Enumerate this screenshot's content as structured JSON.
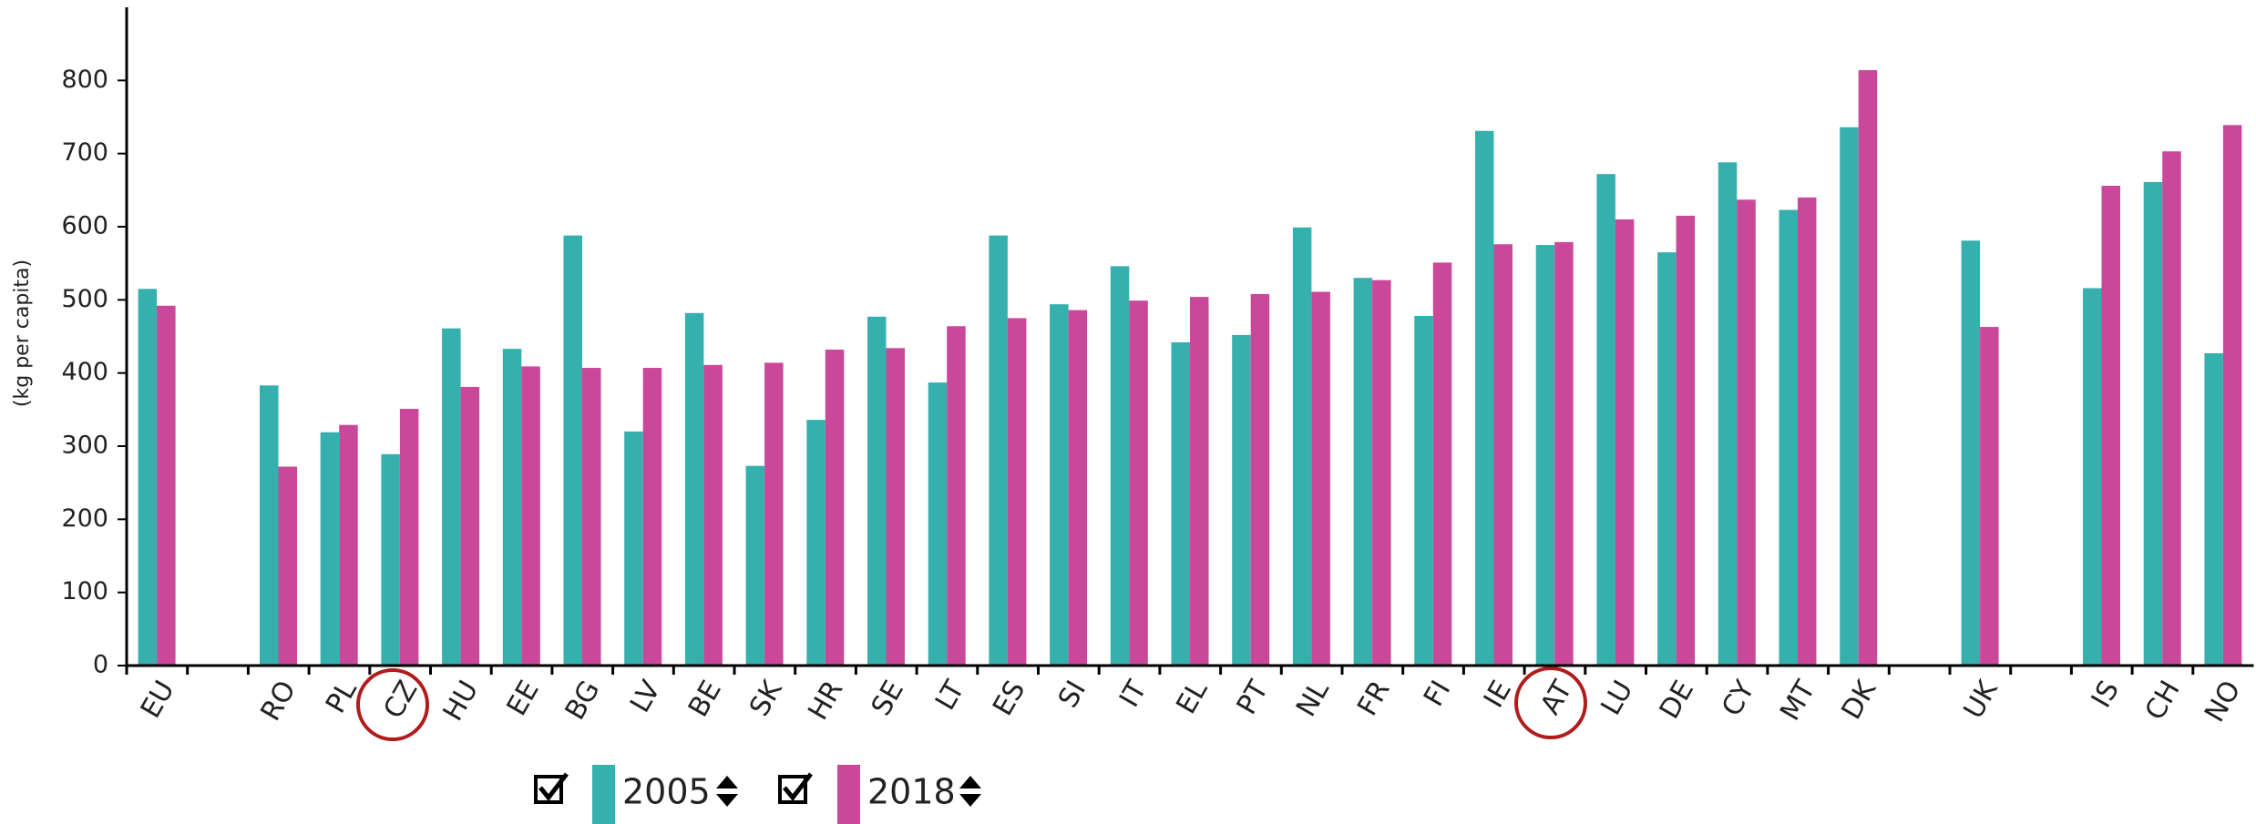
{
  "chart_data": {
    "type": "bar",
    "y_label": "(kg per capita)",
    "categories": [
      "EU",
      null,
      "RO",
      "PL",
      "CZ",
      "HU",
      "EE",
      "BG",
      "LV",
      "BE",
      "SK",
      "HR",
      "SE",
      "LT",
      "ES",
      "SI",
      "IT",
      "EL",
      "PT",
      "NL",
      "FR",
      "FI",
      "IE",
      "AT",
      "LU",
      "DE",
      "CY",
      "MT",
      "DK",
      null,
      "UK",
      null,
      "IS",
      "CH",
      "NO"
    ],
    "series": [
      {
        "name": "2005",
        "color": "#35b0ae",
        "values": [
          515,
          null,
          383,
          319,
          289,
          461,
          433,
          588,
          320,
          482,
          273,
          336,
          477,
          387,
          588,
          494,
          546,
          442,
          452,
          599,
          530,
          478,
          731,
          575,
          672,
          565,
          688,
          623,
          736,
          null,
          581,
          null,
          516,
          661,
          427
        ]
      },
      {
        "name": "2018",
        "color": "#c9489a",
        "values": [
          492,
          null,
          272,
          329,
          351,
          381,
          409,
          407,
          407,
          411,
          414,
          432,
          434,
          464,
          475,
          486,
          499,
          504,
          508,
          511,
          527,
          551,
          576,
          579,
          610,
          615,
          637,
          640,
          814,
          null,
          463,
          null,
          656,
          703,
          739
        ]
      }
    ],
    "ylim": [
      0,
      900
    ],
    "yticks": [
      0,
      100,
      200,
      300,
      400,
      500,
      600,
      700,
      800
    ]
  }
}
